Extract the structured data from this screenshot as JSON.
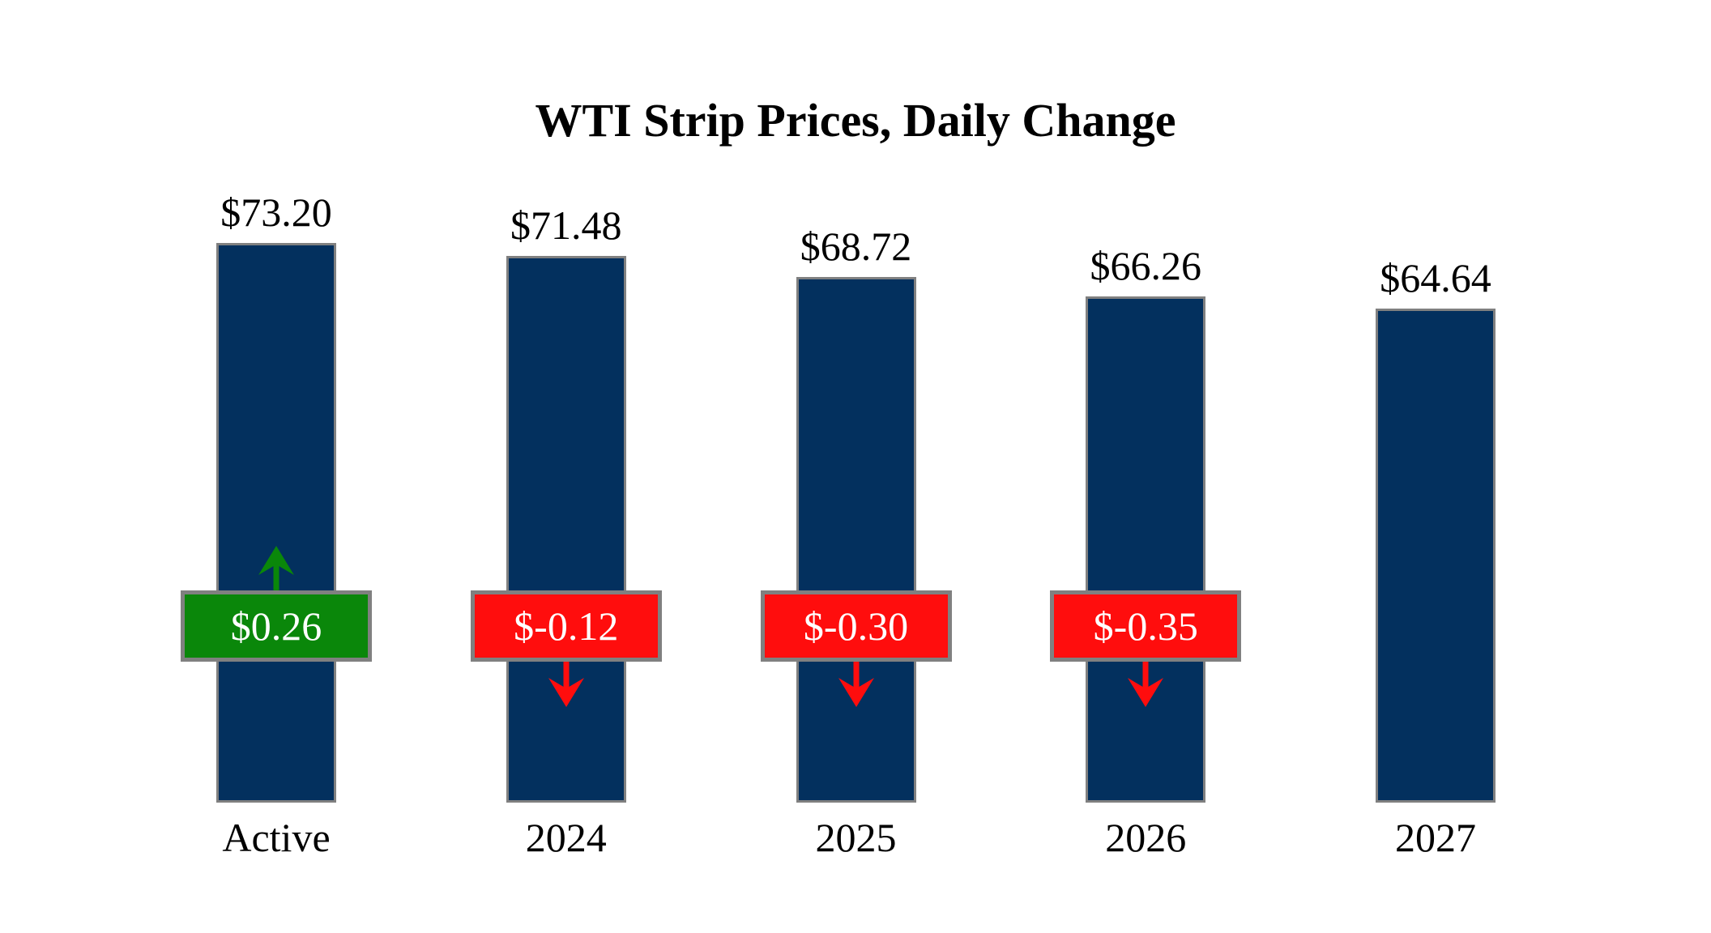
{
  "title": "WTI Strip Prices, Daily Change",
  "colors": {
    "background": "#ffffff",
    "bar_fill": "#03305e",
    "bar_border": "#808080",
    "positive": "#0a870a",
    "negative": "#ff0d0d",
    "badge_border": "#808080",
    "badge_text": "#ffffff",
    "label_text": "#000000"
  },
  "chart_data": {
    "type": "bar",
    "title": "WTI Strip Prices, Daily Change",
    "categories": [
      "Active",
      "2024",
      "2025",
      "2026",
      "2027"
    ],
    "series": [
      {
        "name": "WTI Strip Price",
        "values": [
          73.2,
          71.48,
          68.72,
          66.26,
          64.64
        ]
      },
      {
        "name": "Daily Change",
        "values": [
          0.26,
          -0.12,
          -0.3,
          -0.35,
          null
        ]
      }
    ],
    "value_labels": [
      "$73.20",
      "$71.48",
      "$68.72",
      "$66.26",
      "$64.64"
    ],
    "change_labels": [
      "$0.26",
      "$-0.12",
      "$-0.30",
      "$-0.35",
      null
    ],
    "ylim": [
      0,
      73.2
    ],
    "xlabel": "",
    "ylabel": "",
    "grid": false,
    "legend": "none",
    "annotations": "green box with up arrow for positive daily change, red box with down arrow for negative daily change"
  }
}
